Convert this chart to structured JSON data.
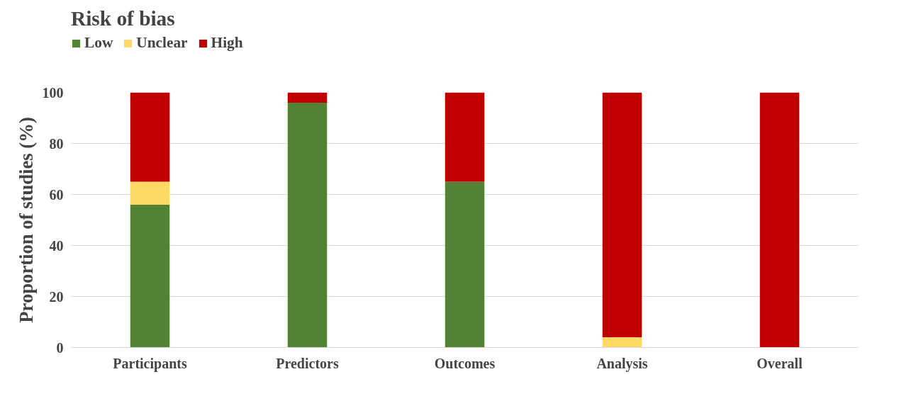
{
  "chart_data": {
    "type": "bar",
    "stacked": true,
    "legend_title": "Risk of bias",
    "ylabel": "Proportion of studies (%)",
    "categories": [
      "Participants",
      "Predictors",
      "Outcomes",
      "Analysis",
      "Overall"
    ],
    "series": [
      {
        "name": "Low",
        "color": "#548235",
        "values": [
          56,
          96,
          65,
          0,
          0
        ]
      },
      {
        "name": "Unclear",
        "color": "#ffd966",
        "values": [
          9,
          0,
          0,
          4,
          0
        ]
      },
      {
        "name": "High",
        "color": "#c00000",
        "values": [
          35,
          4,
          35,
          96,
          100
        ]
      }
    ],
    "ylim": [
      0,
      100
    ],
    "yticks": [
      0,
      20,
      40,
      60,
      80,
      100
    ],
    "grid": "y",
    "legend": "top left"
  }
}
